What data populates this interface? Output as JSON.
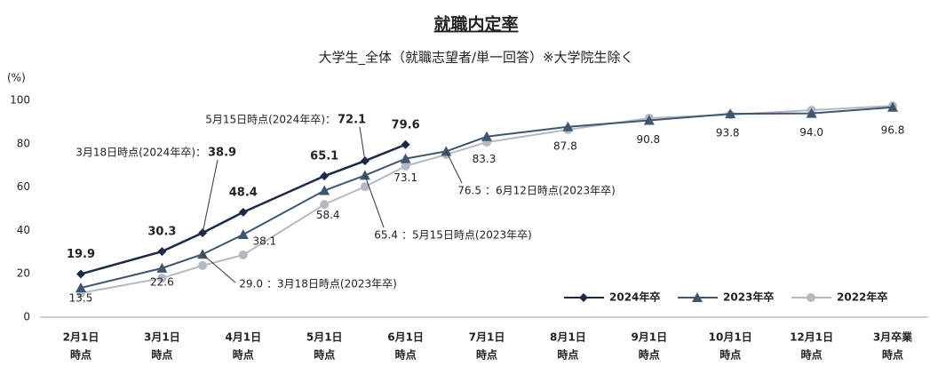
{
  "chart_data": {
    "type": "line",
    "title": "就職内定率",
    "subtitle": "大学生_全体（就職志望者/単一回答）※大学院生除く",
    "y_label": "(%)",
    "categories": [
      [
        "2月1日",
        "時点"
      ],
      [
        "3月1日",
        "時点"
      ],
      null,
      [
        "4月1日",
        "時点"
      ],
      [
        "5月1日",
        "時点"
      ],
      null,
      [
        "6月1日",
        "時点"
      ],
      null,
      [
        "7月1日",
        "時点"
      ],
      [
        "8月1日",
        "時点"
      ],
      [
        "9月1日",
        "時点"
      ],
      [
        "10月1日",
        "時点"
      ],
      [
        "12月1日",
        "時点"
      ],
      [
        "3月卒業",
        "時点"
      ]
    ],
    "ylim": [
      0,
      100
    ],
    "yticks": [
      0,
      20,
      40,
      60,
      80,
      100
    ],
    "grid": false,
    "legend": "bottom-right",
    "series": [
      {
        "name": "2024年卒",
        "color": "#1c2a4a",
        "marker": "diamond",
        "values": [
          19.9,
          30.3,
          38.9,
          48.4,
          65.1,
          72.1,
          79.6,
          null,
          null,
          null,
          null,
          null,
          null,
          null
        ]
      },
      {
        "name": "2023年卒",
        "color": "#3e566f",
        "marker": "triangle",
        "values": [
          13.5,
          22.6,
          29.0,
          38.1,
          58.4,
          65.4,
          73.1,
          76.5,
          83.3,
          87.8,
          90.8,
          93.8,
          94.0,
          96.8
        ],
        "value_labels": [
          "13.5",
          "22.6",
          "29.0",
          "38.1",
          "58.4",
          "65.4",
          "73.1",
          "76.5",
          "83.3",
          "87.8",
          "90.8",
          "93.8",
          "94.0",
          "96.8"
        ]
      },
      {
        "name": "2022年卒",
        "color": "#b3b9c3",
        "marker": "circle",
        "values": [
          11.1,
          18.0,
          23.8,
          28.7,
          52.0,
          60.2,
          69.7,
          75.0,
          80.7,
          86.5,
          91.8,
          93.4,
          95.5,
          97.5
        ]
      }
    ],
    "annotations": [
      "3月18日時点(2024年卒)：",
      "5月15日時点(2024年卒)：",
      "：3月18日時点(2023年卒)",
      "：5月15日時点(2023年卒)",
      "：6月12日時点(2023年卒)"
    ]
  }
}
